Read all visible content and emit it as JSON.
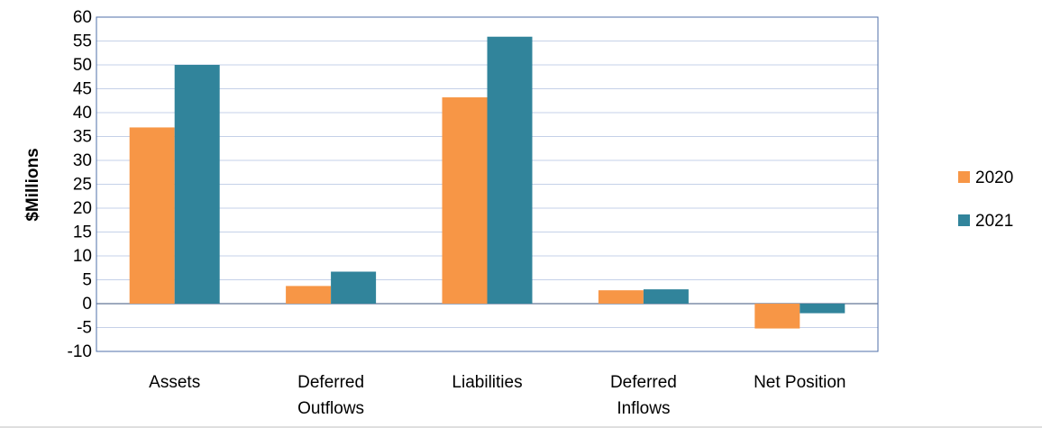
{
  "chart_data": {
    "type": "bar",
    "title": "",
    "xlabel": "",
    "ylabel": "$Millions",
    "ylim": [
      -10,
      60
    ],
    "ytick_step": 5,
    "grid": true,
    "legend_position": "right",
    "categories": [
      "Assets",
      "Deferred Outflows",
      "Liabilities",
      "Deferred Inflows",
      "Net Position"
    ],
    "category_lines": [
      [
        "Assets"
      ],
      [
        "Deferred",
        "Outflows"
      ],
      [
        "Liabilities"
      ],
      [
        "Deferred",
        "Inflows"
      ],
      [
        "Net Position"
      ]
    ],
    "series": [
      {
        "name": "2020",
        "color": "#F79646",
        "values": [
          36.9,
          3.7,
          43.2,
          2.8,
          -5.2
        ]
      },
      {
        "name": "2021",
        "color": "#31849B",
        "values": [
          50.0,
          6.7,
          55.9,
          3.0,
          -2.0
        ]
      }
    ]
  },
  "colors": {
    "grid": "#C5D1E8",
    "frame": "#4F6FA8",
    "zero_line": "#7F8DA8",
    "bottom_rule": "#BFBFBF"
  }
}
